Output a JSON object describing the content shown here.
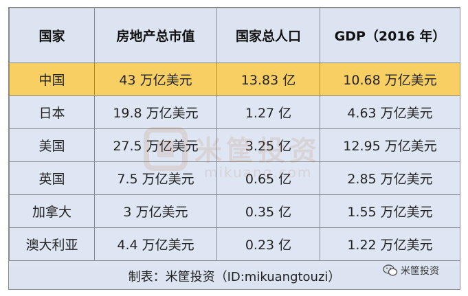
{
  "table": {
    "headers": [
      "国家",
      "房地产总市值",
      "国家总人口",
      "GDP（2016 年）"
    ],
    "rows": [
      [
        "中国",
        "43 万亿美元",
        "13.83 亿",
        "10.68 万亿美元"
      ],
      [
        "日本",
        "19.8 万亿美元",
        "1.27 亿",
        "4.63 万亿美元"
      ],
      [
        "美国",
        "27.5 万亿美元",
        "3.25 亿",
        "12.95 万亿美元"
      ],
      [
        "英国",
        "7.5 万亿美元",
        "0.65 亿",
        "2.85 万亿美元"
      ],
      [
        "加拿大",
        "3 万亿美元",
        "0.35 亿",
        "1.55 万亿美元"
      ],
      [
        "澳大利亚",
        "4.4 万亿美元",
        "0.23 亿",
        "1.22 万亿美元"
      ]
    ],
    "highlight_row": 0,
    "footer": "制表：米筐投资（ID:mikuangtouzi）"
  },
  "watermark": {
    "text": "米筐投资",
    "url": "mikuang.com"
  },
  "brand": {
    "label": "米筐投资",
    "icon": "wechat-icon"
  },
  "colors": {
    "header_bg": "#dbe4f0",
    "row_bg": "#dde6f2",
    "highlight_bg": "#f7cf63",
    "border": "#8a8a8a"
  }
}
